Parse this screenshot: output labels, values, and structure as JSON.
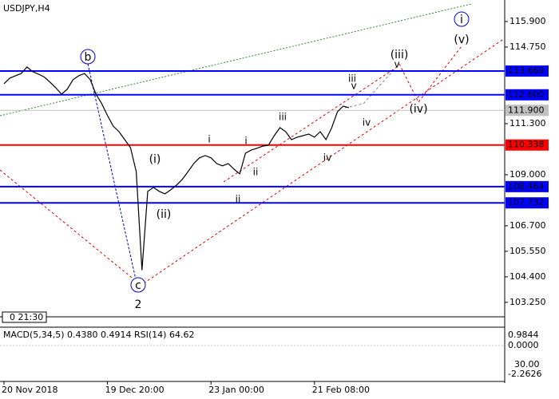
{
  "chart_data": {
    "type": "line",
    "title": "USDJPY,H4",
    "time_label": "0 21:30",
    "categories": [
      "20 Nov 2018",
      null,
      null,
      null,
      null,
      null,
      null,
      null,
      null,
      null,
      null,
      null,
      null,
      null,
      null,
      null,
      null,
      null,
      "19 Dec 20:00",
      null,
      null,
      null,
      null,
      null,
      null,
      null,
      null,
      null,
      null,
      null,
      null,
      null,
      null,
      null,
      null,
      null,
      "23 Jan 00:00",
      null,
      null,
      null,
      null,
      null,
      null,
      null,
      null,
      null,
      null,
      null,
      null,
      null,
      null,
      null,
      null,
      null,
      "21 Feb 08:00",
      null,
      null,
      null,
      null,
      null,
      null
    ],
    "series": [
      {
        "name": "USDJPY",
        "color": "#000000",
        "values": [
          113.1,
          113.35,
          113.46,
          113.56,
          113.85,
          113.64,
          113.53,
          113.4,
          113.17,
          112.92,
          112.63,
          112.85,
          113.28,
          113.46,
          113.56,
          113.28,
          112.63,
          112.2,
          111.66,
          111.19,
          110.94,
          110.58,
          110.22,
          109.14,
          104.7,
          108.25,
          108.43,
          108.25,
          108.14,
          108.32,
          108.53,
          108.79,
          109.14,
          109.5,
          109.76,
          109.86,
          109.76,
          109.5,
          109.4,
          109.5,
          109.25,
          109.04,
          109.97,
          110.11,
          110.19,
          110.29,
          110.33,
          110.76,
          111.12,
          110.94,
          110.58,
          110.69,
          110.76,
          110.83,
          110.69,
          110.94,
          110.58,
          111.12,
          111.84,
          112.09,
          112.02
        ]
      }
    ],
    "ylim": [
      102.6,
      116.87
    ],
    "yticks": [
      {
        "value": 115.9,
        "label": "115.900"
      },
      {
        "value": 114.75,
        "label": "114.750"
      },
      {
        "value": 111.3,
        "label": "111.300"
      },
      {
        "value": 109.0,
        "label": "109.000"
      },
      {
        "value": 106.7,
        "label": "106.700"
      },
      {
        "value": 105.55,
        "label": "105.550"
      },
      {
        "value": 104.4,
        "label": "104.400"
      },
      {
        "value": 103.25,
        "label": "103.250"
      }
    ],
    "levels": [
      {
        "value": 113.669,
        "label": "113.669",
        "color": "#0000ff"
      },
      {
        "value": 112.6,
        "label": "112.600",
        "color": "#0000ff"
      },
      {
        "value": 111.9,
        "label": "111.900",
        "color": "#c0c0c0"
      },
      {
        "value": 110.338,
        "label": "110.338",
        "color": "#ff0000"
      },
      {
        "value": 108.464,
        "label": "108.464",
        "color": "#0000ff"
      },
      {
        "value": 107.732,
        "label": "107.732",
        "color": "#0000ff"
      }
    ],
    "annotations": [
      {
        "text": "b",
        "color": "#0000cc"
      },
      {
        "text": "c",
        "color": "#0000cc"
      },
      {
        "text": "2",
        "color": "#a52a2a"
      },
      {
        "text": "i",
        "color": "#0000cc"
      },
      {
        "text": "(v)",
        "color": "#e00000"
      },
      {
        "text": "(iii)",
        "color": "#e00000"
      },
      {
        "text": "(iv)",
        "color": "#e00000"
      },
      {
        "text": "(i)",
        "color": "#e00000"
      },
      {
        "text": "(ii)",
        "color": "#e00000"
      },
      {
        "text": "iii",
        "color": "#808080"
      },
      {
        "text": "v",
        "color": "#808080"
      },
      {
        "text": "iv",
        "color": "#808080"
      },
      {
        "text": "i",
        "color": "#808080"
      },
      {
        "text": "ii",
        "color": "#808080"
      },
      {
        "text": "i",
        "color": "#2e8b2e"
      },
      {
        "text": "ii",
        "color": "#2e8b2e"
      },
      {
        "text": "iii",
        "color": "#2e8b2e"
      },
      {
        "text": "iv",
        "color": "#2e8b2e"
      },
      {
        "text": "v",
        "color": "#2e8b2e"
      }
    ],
    "indicator_title": "MACD(5,34,5) 0.4380 0.4914 RSI(14) 64.62",
    "indicator_labels": [
      "0.9844",
      "0.0000",
      "30.00",
      "-2.2626"
    ]
  }
}
